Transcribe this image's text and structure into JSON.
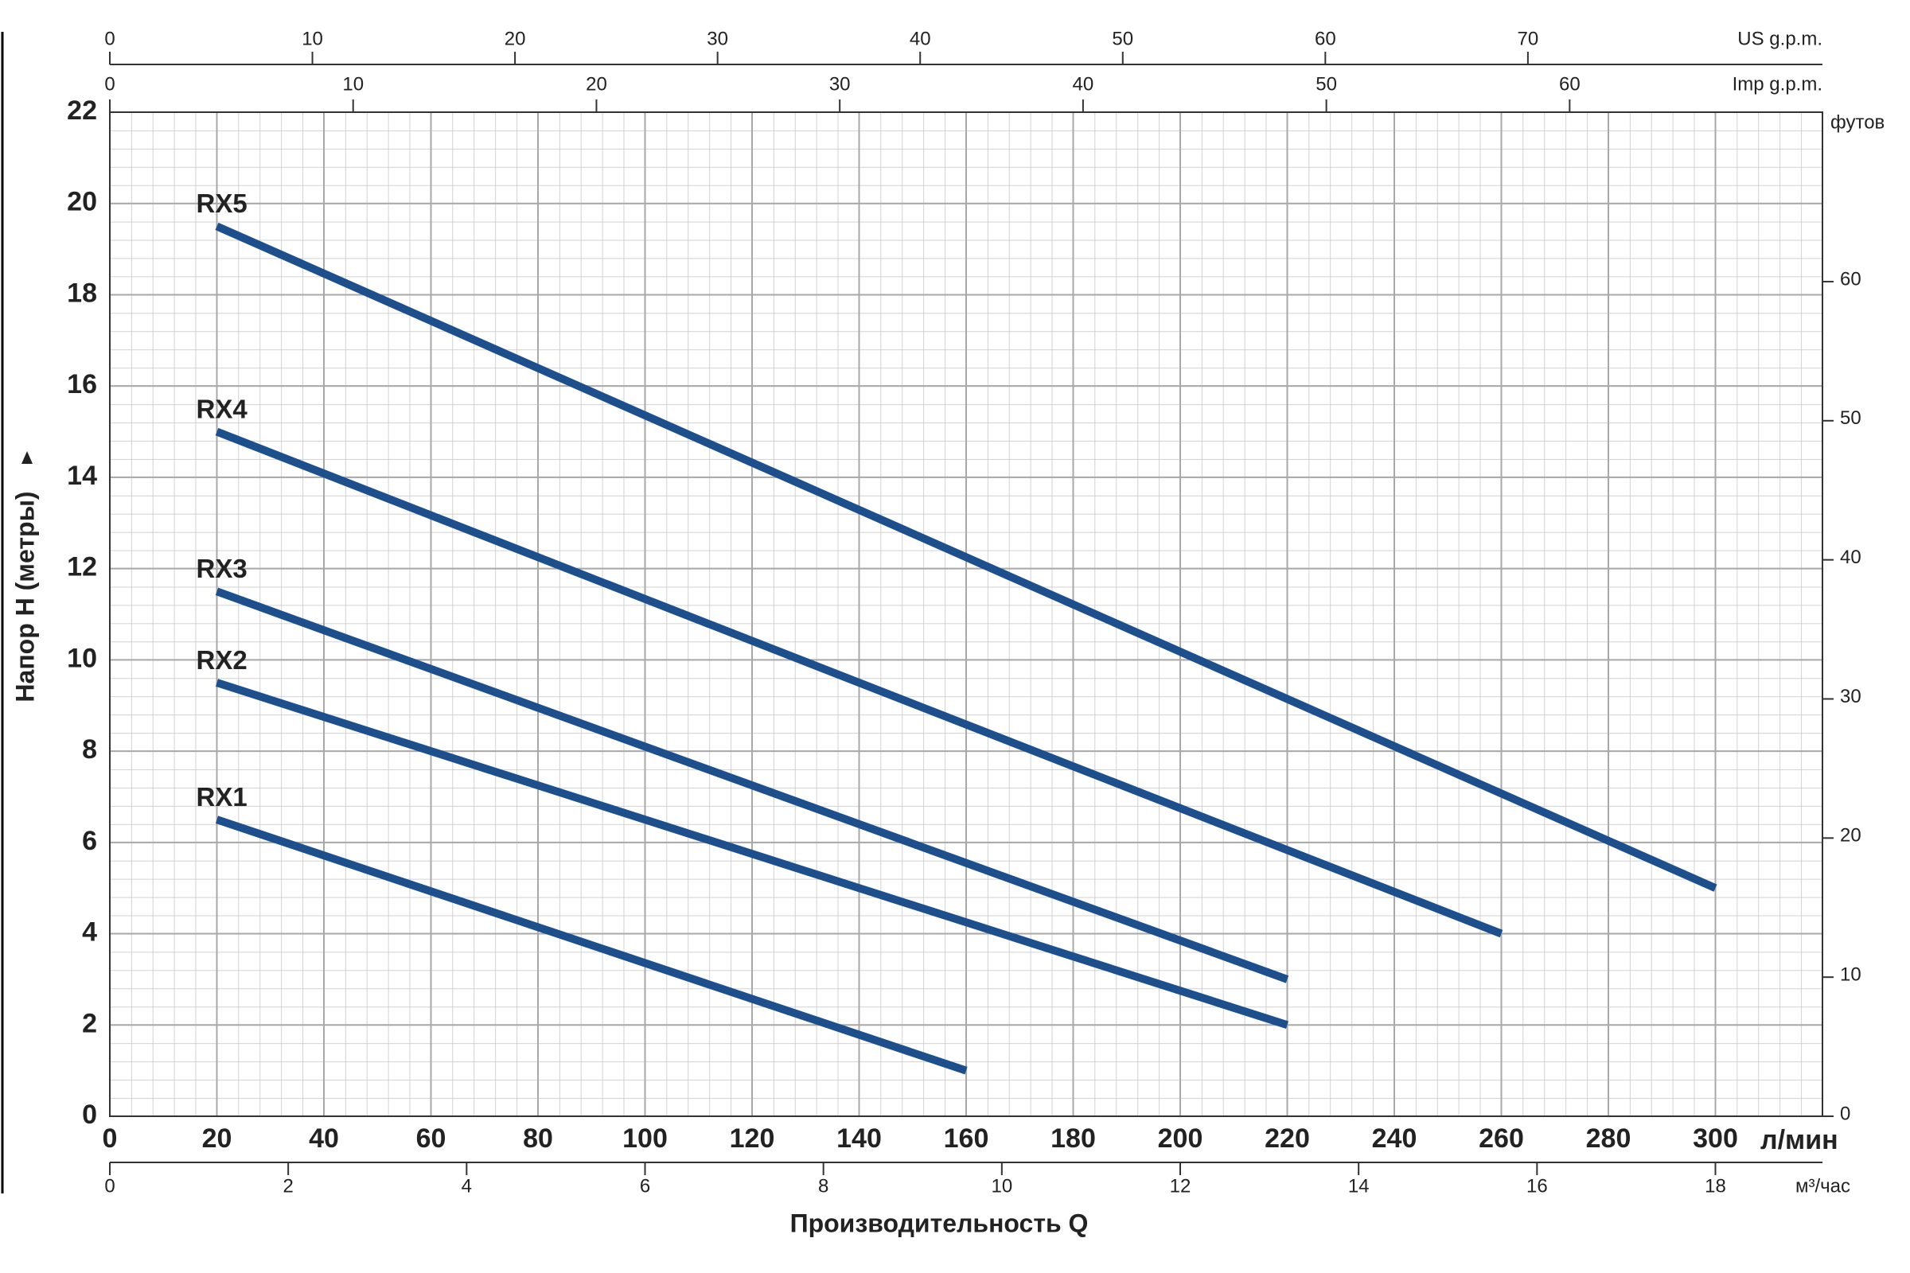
{
  "chart_data": {
    "type": "line",
    "xlabel": "Производительность Q",
    "ylabel": "Напор H (метры)",
    "x_unit": "л/мин",
    "xlim": [
      0,
      320
    ],
    "xticks": [
      0,
      20,
      40,
      60,
      80,
      100,
      120,
      140,
      160,
      180,
      200,
      220,
      240,
      260,
      280,
      300
    ],
    "ylim": [
      0,
      22
    ],
    "yticks": [
      0,
      2,
      4,
      6,
      8,
      10,
      12,
      14,
      16,
      18,
      20,
      22
    ],
    "grid": true,
    "series": [
      {
        "name": "RX1",
        "color": "#1d4f8c",
        "x": [
          20,
          160
        ],
        "values": [
          6.5,
          1
        ]
      },
      {
        "name": "RX2",
        "color": "#1d4f8c",
        "x": [
          20,
          220
        ],
        "values": [
          9.5,
          2
        ]
      },
      {
        "name": "RX3",
        "color": "#1d4f8c",
        "x": [
          20,
          220
        ],
        "values": [
          11.5,
          3
        ]
      },
      {
        "name": "RX4",
        "color": "#1d4f8c",
        "x": [
          20,
          260
        ],
        "values": [
          15,
          4
        ]
      },
      {
        "name": "RX5",
        "color": "#1d4f8c",
        "x": [
          20,
          300
        ],
        "values": [
          19.5,
          5
        ]
      }
    ],
    "secondary_axes": [
      {
        "position": "top-outer",
        "label": "US g.p.m.",
        "lim": [
          0,
          84.54
        ],
        "ticks": [
          0,
          10,
          20,
          30,
          40,
          50,
          60,
          70
        ]
      },
      {
        "position": "top-inner",
        "label": "Imp g.p.m.",
        "lim": [
          0,
          70.39
        ],
        "ticks": [
          0,
          10,
          20,
          30,
          40,
          50,
          60
        ]
      },
      {
        "position": "bottom",
        "label": "м³/час",
        "lim": [
          0,
          19.2
        ],
        "ticks": [
          0,
          2,
          4,
          6,
          8,
          10,
          12,
          14,
          16,
          18
        ]
      },
      {
        "position": "right",
        "label": "футов",
        "lim": [
          0,
          72.18
        ],
        "ticks": [
          0,
          10,
          20,
          30,
          40,
          50,
          60
        ]
      }
    ]
  }
}
